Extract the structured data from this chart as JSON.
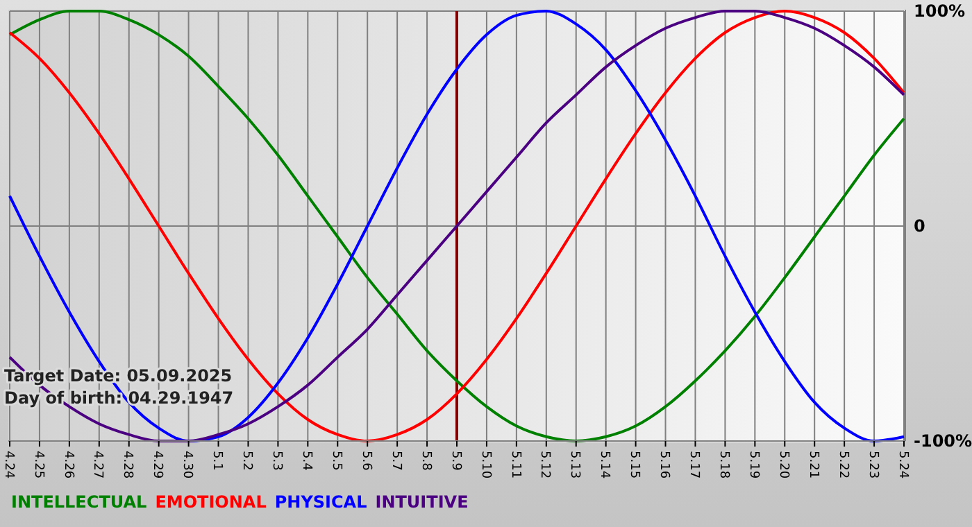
{
  "chart_data": {
    "type": "line",
    "categories": [
      "4.24",
      "4.25",
      "4.26",
      "4.27",
      "4.28",
      "4.29",
      "4.30",
      "5.1",
      "5.2",
      "5.3",
      "5.4",
      "5.5",
      "5.6",
      "5.7",
      "5.8",
      "5.9",
      "5.10",
      "5.11",
      "5.12",
      "5.13",
      "5.14",
      "5.15",
      "5.16",
      "5.17",
      "5.18",
      "5.19",
      "5.20",
      "5.21",
      "5.22",
      "5.23",
      "5.24"
    ],
    "series": [
      {
        "name": "INTELLECTUAL",
        "color": "#008000",
        "values": [
          89,
          96,
          100,
          100,
          96,
          89,
          79,
          65,
          50,
          33,
          14,
          -5,
          -24,
          -41,
          -58,
          -72,
          -84,
          -93,
          -98,
          -100,
          -98,
          -93,
          -84,
          -72,
          -58,
          -42,
          -24,
          -5,
          14,
          33,
          50
        ]
      },
      {
        "name": "EMOTIONAL",
        "color": "#ff0000",
        "values": [
          90,
          78,
          62,
          43,
          22,
          0,
          -22,
          -43,
          -62,
          -78,
          -90,
          -97,
          -100,
          -97,
          -90,
          -78,
          -62,
          -43,
          -22,
          0,
          22,
          43,
          62,
          78,
          90,
          97,
          100,
          97,
          90,
          78,
          62
        ]
      },
      {
        "name": "PHYSICAL",
        "color": "#0000ff",
        "values": [
          14,
          -14,
          -40,
          -63,
          -82,
          -94,
          -100,
          -98,
          -89,
          -73,
          -52,
          -27,
          0,
          27,
          52,
          73,
          89,
          98,
          100,
          94,
          82,
          63,
          40,
          14,
          -14,
          -40,
          -63,
          -82,
          -94,
          -100,
          -98
        ]
      },
      {
        "name": "INTUITIVE",
        "color": "#4b0082",
        "values": [
          -61,
          -74,
          -84,
          -92,
          -97,
          -100,
          -100,
          -97,
          -92,
          -84,
          -74,
          -61,
          -48,
          -32,
          -16,
          0,
          16,
          32,
          48,
          61,
          74,
          84,
          92,
          97,
          100,
          100,
          97,
          92,
          84,
          74,
          61
        ]
      }
    ],
    "ylim": [
      -100,
      100
    ],
    "yticks": [
      {
        "value": -100,
        "label": "-100%"
      },
      0,
      {
        "value": 100,
        "label": "100%"
      }
    ],
    "grid": true,
    "legend": "bottom",
    "line_style": "solid",
    "ref_lines": [
      {
        "axis": "x",
        "value": "5.9",
        "color": "#800000"
      }
    ],
    "annotations": [
      "Target Date: 05.09.2025",
      "Day of birth: 04.29.1947"
    ]
  }
}
